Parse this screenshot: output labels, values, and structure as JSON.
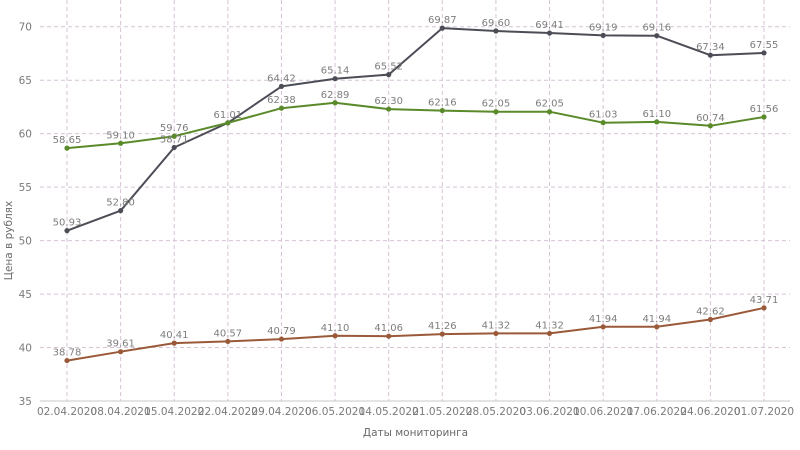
{
  "chart_data": {
    "type": "line",
    "xlabel": "Даты мониторинга",
    "ylabel": "Цена в рублях",
    "ylim": [
      35,
      72.5
    ],
    "yticks": [
      35,
      40,
      45,
      50,
      55,
      60,
      65,
      70
    ],
    "grid": true,
    "categories": [
      "02.04.2020",
      "08.04.2020",
      "15.04.2020",
      "22.04.2020",
      "29.04.2020",
      "06.05.2020",
      "14.05.2020",
      "21.05.2020",
      "28.05.2020",
      "03.06.2020",
      "10.06.2020",
      "17.06.2020",
      "24.06.2020",
      "01.07.2020"
    ],
    "series": [
      {
        "color": "#4d4d57",
        "values": [
          50.93,
          52.8,
          58.71,
          61.01,
          64.42,
          65.14,
          65.52,
          69.87,
          69.6,
          69.41,
          69.19,
          69.16,
          67.34,
          67.55
        ],
        "labels": [
          "50.93",
          "52.80",
          "58.71",
          "61.01",
          "64.42",
          "65.14",
          "65.52",
          "69.87",
          "69.60",
          "69.41",
          "69.19",
          "69.16",
          "67.34",
          "67.55"
        ]
      },
      {
        "color": "#5a8a2a",
        "values": [
          58.65,
          59.1,
          59.76,
          61.01,
          62.38,
          62.89,
          62.3,
          62.16,
          62.05,
          62.05,
          61.03,
          61.1,
          60.74,
          61.56
        ],
        "labels": [
          "58.65",
          "59.10",
          "59.76",
          "",
          "62.38",
          "62.89",
          "62.30",
          "62.16",
          "62.05",
          "62.05",
          "61.03",
          "61.10",
          "60.74",
          "61.56"
        ]
      },
      {
        "color": "#9a5a3a",
        "values": [
          38.78,
          39.61,
          40.41,
          40.57,
          40.79,
          41.1,
          41.06,
          41.26,
          41.32,
          41.32,
          41.94,
          41.94,
          42.62,
          43.71
        ],
        "labels": [
          "38.78",
          "39.61",
          "40.41",
          "40.57",
          "40.79",
          "41.10",
          "41.06",
          "41.26",
          "41.32",
          "41.32",
          "41.94",
          "41.94",
          "42.62",
          "43.71"
        ]
      }
    ]
  }
}
